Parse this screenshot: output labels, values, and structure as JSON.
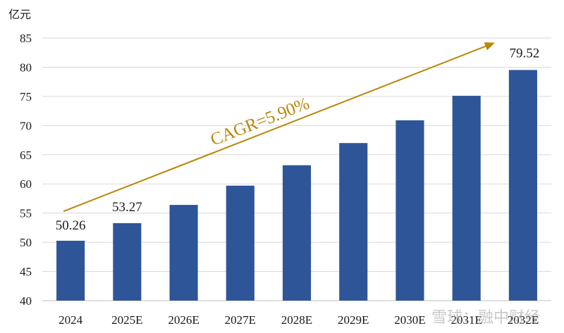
{
  "chart_data": {
    "type": "bar",
    "y_unit": "亿元",
    "categories": [
      "2024",
      "2025E",
      "2026E",
      "2027E",
      "2028E",
      "2029E",
      "2030E",
      "2031E",
      "2032E"
    ],
    "values": [
      50.26,
      53.27,
      56.4,
      59.7,
      63.2,
      67.0,
      70.9,
      75.1,
      79.52
    ],
    "labeled_values": {
      "2024": "50.26",
      "2025E": "53.27",
      "2032E": "79.52"
    },
    "ylim": [
      40,
      85
    ],
    "yticks": [
      40,
      45,
      50,
      55,
      60,
      65,
      70,
      75,
      80,
      85
    ],
    "grid": true,
    "bar_color": "#2e5597",
    "annotation": {
      "text": "CAGR=5.90%",
      "color": "#b8860b",
      "from": {
        "x": "2024",
        "y": 55.3
      },
      "to": {
        "x": "2032E",
        "y": 84.2
      }
    }
  },
  "watermark": {
    "text": "雪球：融中财经"
  }
}
